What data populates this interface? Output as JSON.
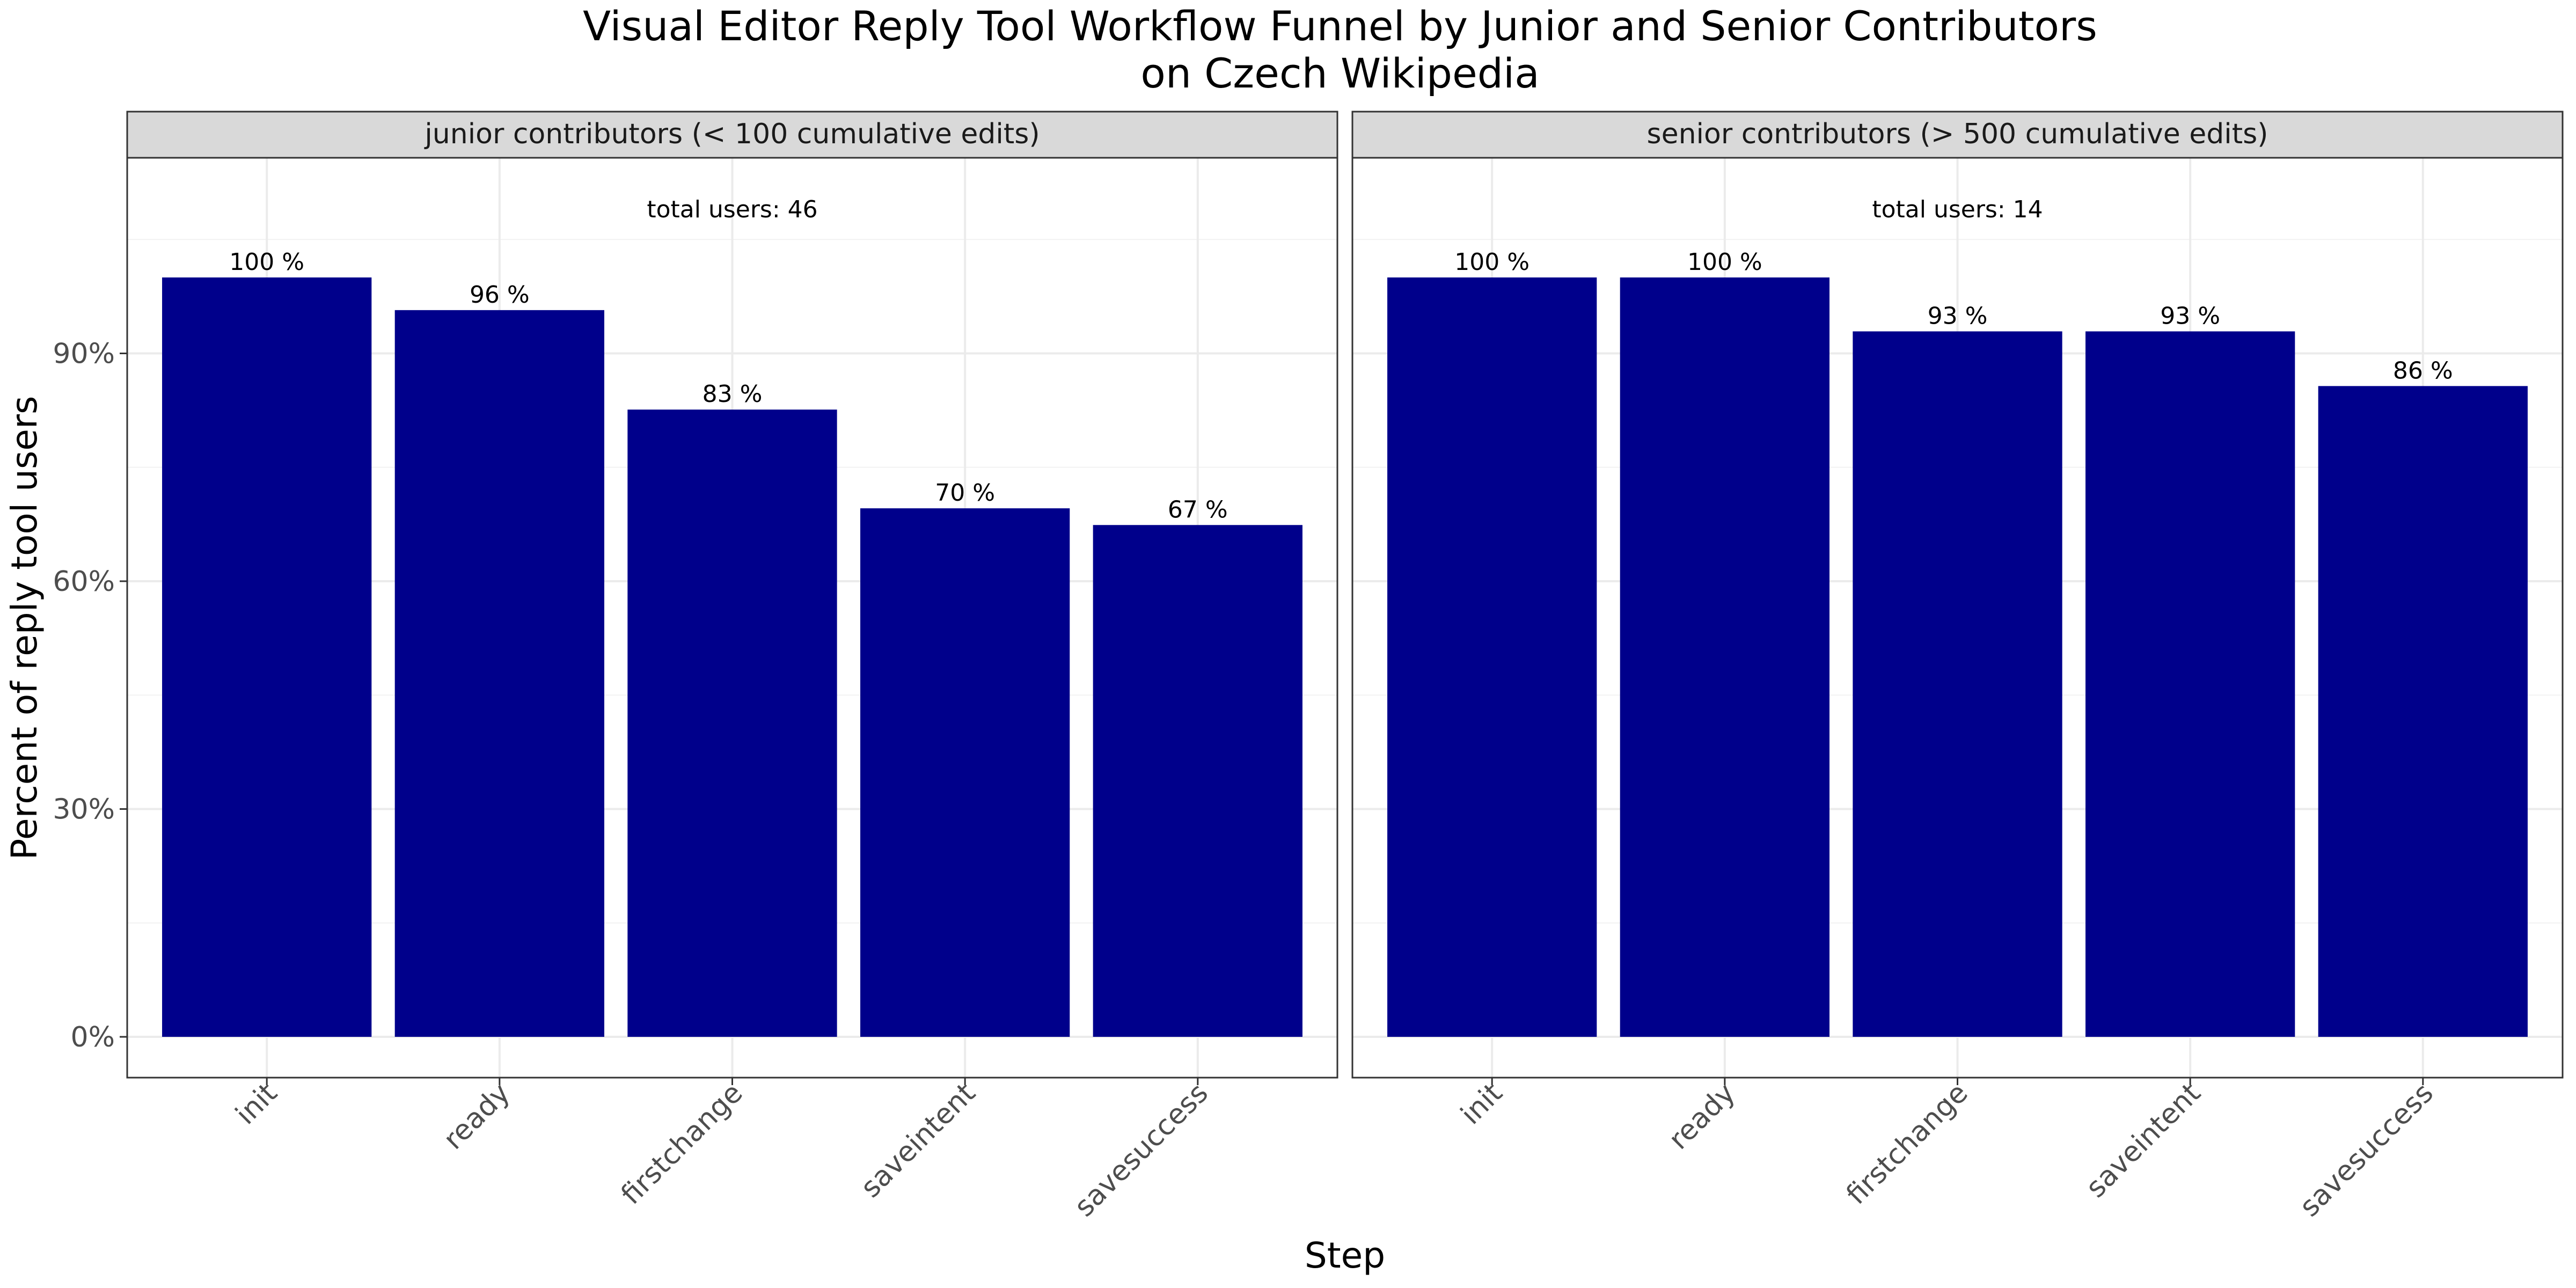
{
  "chart_data": {
    "type": "bar",
    "title": "Visual Editor Reply Tool Workflow Funnel by Junior and Senior Contributors",
    "subtitle": "on Czech Wikipedia",
    "xlabel": "Step",
    "ylabel": "Percent of reply tool users",
    "ylim": [
      -0.055,
      1.15
    ],
    "yticks": [
      0,
      0.3,
      0.6,
      0.9
    ],
    "ytick_labels": [
      "0%",
      "30%",
      "60%",
      "90%"
    ],
    "grid": true,
    "bar_color": "#00008B",
    "categories": [
      "init",
      "ready",
      "firstchange",
      "saveintent",
      "savesuccess"
    ],
    "panels": [
      {
        "strip": "junior contributors (< 100 cumulative edits)",
        "annotation": "total users: 46",
        "values": [
          1.0,
          0.957,
          0.826,
          0.696,
          0.674
        ],
        "labels": [
          "100 %",
          "96 %",
          "83 %",
          "70 %",
          "67 %"
        ]
      },
      {
        "strip": "senior contributors (> 500 cumulative edits)",
        "annotation": "total users: 14",
        "values": [
          1.0,
          1.0,
          0.929,
          0.929,
          0.857
        ],
        "labels": [
          "100 %",
          "100 %",
          "93 %",
          "93 %",
          "86 %"
        ]
      }
    ]
  }
}
